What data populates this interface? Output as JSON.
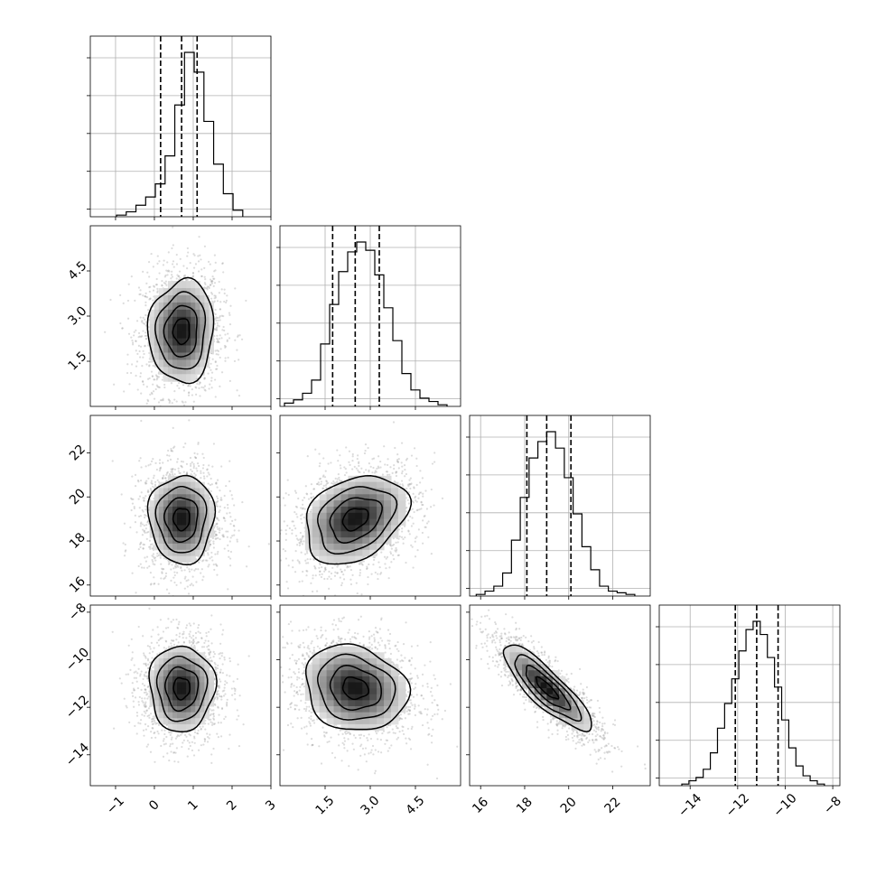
{
  "chart_data": {
    "type": "corner",
    "grid": true,
    "parameters": [
      {
        "index": 0,
        "range": [
          -1.65,
          3.0
        ],
        "ticks": [
          -1,
          0,
          1,
          2,
          3
        ],
        "tick_labels": [
          "−1",
          "0",
          "1",
          "2",
          "3"
        ],
        "quantiles": [
          0.16,
          0.7,
          1.1
        ],
        "histogram": {
          "bin_centers": [
            -0.85,
            -0.6,
            -0.35,
            -0.1,
            0.15,
            0.4,
            0.65,
            0.9,
            1.15,
            1.4,
            1.65,
            1.9,
            2.15
          ],
          "counts": [
            0.01,
            0.03,
            0.07,
            0.12,
            0.2,
            0.37,
            0.68,
            1.0,
            0.88,
            0.58,
            0.32,
            0.14,
            0.04
          ]
        },
        "scatter_center": 0.7,
        "scatter_sigma": 0.42
      },
      {
        "index": 1,
        "range": [
          0.0,
          6.0
        ],
        "ticks": [
          1.5,
          3.0,
          4.5
        ],
        "tick_labels": [
          "1.5",
          "3.0",
          "4.5"
        ],
        "quantiles": [
          1.75,
          2.5,
          3.3
        ],
        "histogram": {
          "bin_centers": [
            0.3,
            0.6,
            0.9,
            1.2,
            1.5,
            1.8,
            2.1,
            2.4,
            2.7,
            3.0,
            3.3,
            3.6,
            3.9,
            4.2,
            4.5,
            4.8,
            5.1,
            5.4
          ],
          "counts": [
            0.02,
            0.04,
            0.08,
            0.16,
            0.38,
            0.62,
            0.82,
            0.94,
            1.0,
            0.95,
            0.8,
            0.6,
            0.4,
            0.2,
            0.1,
            0.05,
            0.03,
            0.01
          ]
        },
        "scatter_center": 2.5,
        "scatter_sigma": 0.85
      },
      {
        "index": 2,
        "range": [
          15.5,
          23.7
        ],
        "ticks": [
          16,
          18,
          20,
          22
        ],
        "tick_labels": [
          "16",
          "18",
          "20",
          "22"
        ],
        "quantiles": [
          18.1,
          19.0,
          20.1
        ],
        "histogram": {
          "bin_centers": [
            16.0,
            16.4,
            16.8,
            17.2,
            17.6,
            18.0,
            18.4,
            18.8,
            19.2,
            19.6,
            20.0,
            20.4,
            20.8,
            21.2,
            21.6,
            22.0,
            22.4,
            22.8
          ],
          "counts": [
            0.01,
            0.03,
            0.06,
            0.14,
            0.34,
            0.6,
            0.84,
            0.94,
            1.0,
            0.9,
            0.72,
            0.5,
            0.3,
            0.16,
            0.06,
            0.03,
            0.02,
            0.01
          ]
        },
        "scatter_center": 19.0,
        "scatter_sigma": 1.0
      },
      {
        "index": 3,
        "range": [
          -15.3,
          -7.7
        ],
        "ticks": [
          -14,
          -12,
          -10,
          -8
        ],
        "tick_labels": [
          "−14",
          "−12",
          "−10",
          "−8"
        ],
        "quantiles": [
          -12.1,
          -11.2,
          -10.3
        ],
        "histogram": {
          "bin_centers": [
            -14.2,
            -13.9,
            -13.6,
            -13.3,
            -13.0,
            -12.7,
            -12.4,
            -12.1,
            -11.8,
            -11.5,
            -11.2,
            -10.9,
            -10.6,
            -10.3,
            -10.0,
            -9.7,
            -9.4,
            -9.1,
            -8.8,
            -8.5
          ],
          "counts": [
            0.01,
            0.03,
            0.05,
            0.1,
            0.2,
            0.35,
            0.5,
            0.65,
            0.82,
            0.95,
            1.0,
            0.92,
            0.78,
            0.6,
            0.4,
            0.23,
            0.12,
            0.06,
            0.03,
            0.01
          ]
        },
        "scatter_center": -11.2,
        "scatter_sigma": 0.9
      }
    ],
    "correlations": {
      "1,0": 0.05,
      "2,0": 0.0,
      "2,1": 0.3,
      "3,0": 0.0,
      "3,1": -0.15,
      "3,2": -0.85
    },
    "contour_levels": [
      0.5,
      1.0,
      1.5,
      2.0
    ]
  }
}
